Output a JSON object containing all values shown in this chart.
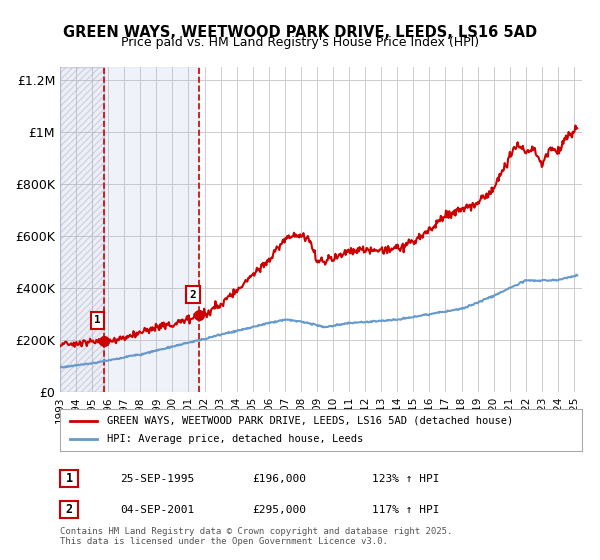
{
  "title": "GREEN WAYS, WEETWOOD PARK DRIVE, LEEDS, LS16 5AD",
  "subtitle": "Price paid vs. HM Land Registry's House Price Index (HPI)",
  "title_fontsize": 11,
  "subtitle_fontsize": 9.5,
  "background_color": "#ffffff",
  "plot_bg_color": "#ffffff",
  "grid_color": "#cccccc",
  "hatch_region_color": "#d0d8e8",
  "shaded_region_color": "#dde8f5",
  "marker1_date": 1995.73,
  "marker2_date": 2001.67,
  "marker1_price": 196000,
  "marker2_price": 295000,
  "sale_dates": [
    1995.73,
    2001.67
  ],
  "sale_prices": [
    196000,
    295000
  ],
  "ylim": [
    0,
    1250000
  ],
  "xlim": [
    1993,
    2025.5
  ],
  "ylabel_ticks": [
    0,
    200000,
    400000,
    600000,
    800000,
    1000000,
    1200000
  ],
  "ylabel_labels": [
    "£0",
    "£200K",
    "£400K",
    "£600K",
    "£800K",
    "£1M",
    "£1.2M"
  ],
  "xtick_labels": [
    "1993",
    "1994",
    "1995",
    "1996",
    "1997",
    "1998",
    "1999",
    "2000",
    "2001",
    "2002",
    "2003",
    "2004",
    "2005",
    "2006",
    "2007",
    "2008",
    "2009",
    "2010",
    "2011",
    "2012",
    "2013",
    "2014",
    "2015",
    "2016",
    "2017",
    "2018",
    "2019",
    "2020",
    "2021",
    "2022",
    "2023",
    "2024",
    "2025"
  ],
  "legend_label_red": "GREEN WAYS, WEETWOOD PARK DRIVE, LEEDS, LS16 5AD (detached house)",
  "legend_label_blue": "HPI: Average price, detached house, Leeds",
  "footer_text": "Contains HM Land Registry data © Crown copyright and database right 2025.\nThis data is licensed under the Open Government Licence v3.0.",
  "table_row1": [
    "1",
    "25-SEP-1995",
    "£196,000",
    "123% ↑ HPI"
  ],
  "table_row2": [
    "2",
    "04-SEP-2001",
    "£295,000",
    "117% ↑ HPI"
  ],
  "red_line_color": "#cc0000",
  "blue_line_color": "#6699cc",
  "marker_color": "#cc0000"
}
